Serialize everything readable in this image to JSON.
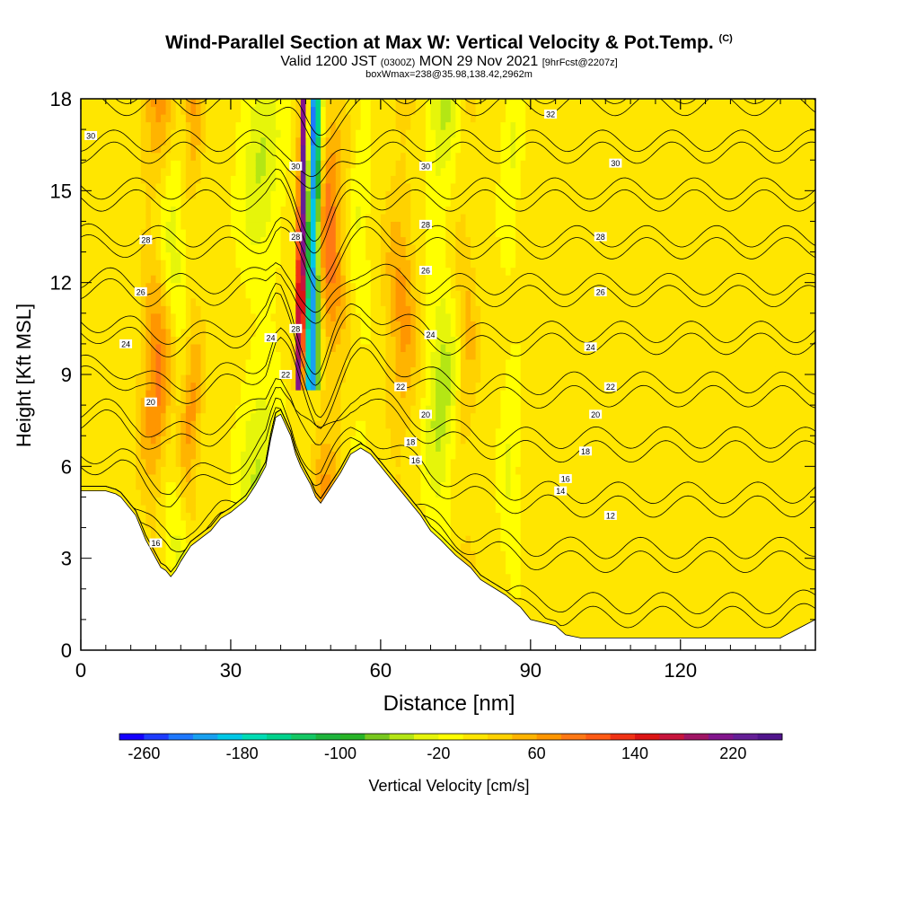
{
  "title": {
    "main": "Wind-Parallel Section at Max W: Vertical Velocity & Pot.Temp.",
    "copyright": "(C)",
    "valid_prefix": "Valid 1200 JST",
    "utc": "(0300Z)",
    "date": "MON 29 Nov 2021",
    "forecast": "[9hrFcst@2207z]",
    "box": "boxWmax=238@35.98,138.42,2962m"
  },
  "chart_data": {
    "type": "heatmap",
    "xlabel": "Distance [nm]",
    "ylabel": "Height [Kft MSL]",
    "xlim": [
      0,
      147
    ],
    "ylim": [
      0,
      18
    ],
    "x_ticks": [
      0,
      30,
      60,
      90,
      120
    ],
    "y_ticks": [
      0,
      3,
      6,
      9,
      12,
      15,
      18
    ],
    "colorbar": {
      "label": "Vertical Velocity [cm/s]",
      "ticks": [
        -260,
        -180,
        -100,
        -20,
        60,
        140,
        220
      ],
      "range": [
        -280,
        260
      ],
      "step": 20,
      "colors": [
        "#1400ff",
        "#1e3cff",
        "#1e78ff",
        "#18a0f0",
        "#00c8e6",
        "#00dcb4",
        "#00d28c",
        "#14c864",
        "#1eb43c",
        "#28b428",
        "#78c81e",
        "#b4e614",
        "#e6f50a",
        "#ffff00",
        "#ffe600",
        "#ffd200",
        "#ffb400",
        "#ff9600",
        "#ff7814",
        "#ff5a14",
        "#f03214",
        "#dc1414",
        "#c8143c",
        "#a01464",
        "#82148c",
        "#641e96",
        "#50148c"
      ]
    },
    "terrain_profile": {
      "x": [
        0,
        5,
        7,
        8,
        11,
        12,
        13,
        14,
        15,
        16,
        17,
        18,
        19,
        20,
        22,
        26,
        27,
        28,
        30,
        33,
        35,
        37,
        38,
        39,
        40,
        42,
        43,
        44,
        45,
        46,
        47,
        48,
        50,
        52,
        53,
        54,
        55,
        56,
        58,
        60,
        62,
        65,
        68,
        70,
        72,
        75,
        78,
        80,
        85,
        88,
        90,
        95,
        97,
        100,
        105,
        110,
        115,
        120,
        125,
        130,
        135,
        140,
        147
      ],
      "height": [
        5.2,
        5.2,
        5.1,
        5.0,
        4.4,
        4.0,
        3.6,
        3.3,
        3.0,
        2.7,
        2.6,
        2.4,
        2.6,
        2.9,
        3.4,
        3.9,
        4.1,
        4.3,
        4.5,
        4.9,
        5.4,
        6.0,
        6.9,
        7.6,
        7.7,
        7.0,
        6.4,
        6.0,
        5.7,
        5.4,
        5.0,
        4.8,
        5.3,
        5.8,
        6.1,
        6.4,
        6.5,
        6.6,
        6.4,
        6.0,
        5.6,
        5.0,
        4.4,
        3.9,
        3.6,
        3.1,
        2.7,
        2.3,
        1.8,
        1.4,
        1.0,
        0.8,
        0.5,
        0.4,
        0.4,
        0.4,
        0.4,
        0.4,
        0.4,
        0.4,
        0.4,
        0.4,
        1.0
      ]
    },
    "theta_contours": {
      "levels": [
        12,
        14,
        16,
        18,
        20,
        22,
        24,
        26,
        28,
        30,
        32
      ],
      "labeled": [
        {
          "level": "16",
          "x": 15,
          "z": 3.5
        },
        {
          "level": "20",
          "x": 14,
          "z": 8.1
        },
        {
          "level": "24",
          "x": 9,
          "z": 10.0
        },
        {
          "level": "26",
          "x": 12,
          "z": 11.7
        },
        {
          "level": "28",
          "x": 13,
          "z": 13.4
        },
        {
          "level": "30",
          "x": 2,
          "z": 16.8
        },
        {
          "level": "22",
          "x": 41,
          "z": 9.0
        },
        {
          "level": "24",
          "x": 38,
          "z": 10.2
        },
        {
          "level": "28",
          "x": 43,
          "z": 10.5
        },
        {
          "level": "28",
          "x": 43,
          "z": 13.5
        },
        {
          "level": "30",
          "x": 43,
          "z": 15.8
        },
        {
          "level": "22",
          "x": 64,
          "z": 8.6
        },
        {
          "level": "20",
          "x": 69,
          "z": 7.7
        },
        {
          "level": "18",
          "x": 66,
          "z": 6.8
        },
        {
          "level": "16",
          "x": 67,
          "z": 6.2
        },
        {
          "level": "24",
          "x": 70,
          "z": 10.3
        },
        {
          "level": "26",
          "x": 69,
          "z": 12.4
        },
        {
          "level": "28",
          "x": 69,
          "z": 13.9
        },
        {
          "level": "30",
          "x": 69,
          "z": 15.8
        },
        {
          "level": "32",
          "x": 94,
          "z": 17.5
        },
        {
          "level": "18",
          "x": 101,
          "z": 6.5
        },
        {
          "level": "16",
          "x": 97,
          "z": 5.6
        },
        {
          "level": "14",
          "x": 96,
          "z": 5.2
        },
        {
          "level": "12",
          "x": 106,
          "z": 4.4
        },
        {
          "level": "20",
          "x": 103,
          "z": 7.7
        },
        {
          "level": "22",
          "x": 106,
          "z": 8.6
        },
        {
          "level": "24",
          "x": 102,
          "z": 9.9
        },
        {
          "level": "26",
          "x": 104,
          "z": 11.7
        },
        {
          "level": "28",
          "x": 104,
          "z": 13.5
        },
        {
          "level": "30",
          "x": 107,
          "z": 15.9
        }
      ]
    },
    "vertical_velocity_features": [
      {
        "name": "strong updraft",
        "x0": 42.5,
        "x1": 45.0,
        "z0": 8.5,
        "z1": 18,
        "w": 238
      },
      {
        "name": "strong downdraft",
        "x0": 41.5,
        "x1": 47.5,
        "z0": 8.5,
        "z1": 18,
        "w": -240
      },
      {
        "name": "updraft band",
        "x": 15,
        "width": 3,
        "w": 80
      },
      {
        "name": "updraft band",
        "x": 22,
        "width": 2,
        "w": 60
      },
      {
        "name": "updraft band",
        "x": 50,
        "width": 3,
        "w": 90
      },
      {
        "name": "updraft band",
        "x": 64,
        "width": 3,
        "w": 60
      },
      {
        "name": "updraft band",
        "x": 77,
        "width": 2,
        "w": 40
      },
      {
        "name": "sinking band",
        "x": 19,
        "width": 3,
        "w": -40
      },
      {
        "name": "sinking band",
        "x": 36,
        "width": 4,
        "w": -50
      },
      {
        "name": "sinking band",
        "x": 56,
        "width": 2,
        "w": -30
      },
      {
        "name": "sinking band",
        "x": 72,
        "width": 3,
        "w": -60
      },
      {
        "name": "sinking band",
        "x": 86,
        "width": 2,
        "w": -30
      }
    ]
  }
}
